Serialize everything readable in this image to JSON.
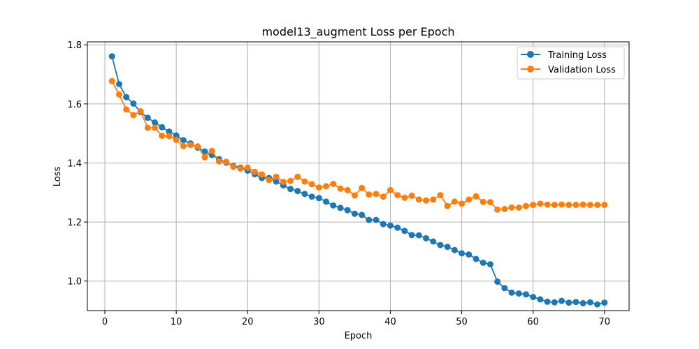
{
  "chart_data": {
    "type": "line",
    "title": "model13_augment Loss per Epoch",
    "xlabel": "Epoch",
    "ylabel": "Loss",
    "xlim": [
      -2.45,
      73.45
    ],
    "ylim": [
      0.9,
      1.81
    ],
    "xticks": [
      0,
      10,
      20,
      30,
      40,
      50,
      60,
      70
    ],
    "yticks": [
      1.0,
      1.2,
      1.4,
      1.6,
      1.8
    ],
    "xtick_labels": [
      "0",
      "10",
      "20",
      "30",
      "40",
      "50",
      "60",
      "70"
    ],
    "ytick_labels": [
      "1.0",
      "1.2",
      "1.4",
      "1.6",
      "1.8"
    ],
    "grid": true,
    "legend_position": "top-right",
    "x": [
      1,
      2,
      3,
      4,
      5,
      6,
      7,
      8,
      9,
      10,
      11,
      12,
      13,
      14,
      15,
      16,
      17,
      18,
      19,
      20,
      21,
      22,
      23,
      24,
      25,
      26,
      27,
      28,
      29,
      30,
      31,
      32,
      33,
      34,
      35,
      36,
      37,
      38,
      39,
      40,
      41,
      42,
      43,
      44,
      45,
      46,
      47,
      48,
      49,
      50,
      51,
      52,
      53,
      54,
      55,
      56,
      57,
      58,
      59,
      60,
      61,
      62,
      63,
      64,
      65,
      66,
      67,
      68,
      69,
      70
    ],
    "series": [
      {
        "name": "Training Loss",
        "color": "#1f77b4",
        "values": [
          1.761,
          1.667,
          1.623,
          1.601,
          1.572,
          1.553,
          1.537,
          1.521,
          1.506,
          1.493,
          1.477,
          1.466,
          1.452,
          1.439,
          1.427,
          1.413,
          1.401,
          1.39,
          1.384,
          1.374,
          1.362,
          1.349,
          1.349,
          1.337,
          1.324,
          1.312,
          1.305,
          1.295,
          1.286,
          1.281,
          1.269,
          1.256,
          1.248,
          1.24,
          1.228,
          1.224,
          1.207,
          1.207,
          1.193,
          1.188,
          1.181,
          1.17,
          1.156,
          1.155,
          1.145,
          1.134,
          1.122,
          1.116,
          1.105,
          1.094,
          1.09,
          1.075,
          1.062,
          1.057,
          0.998,
          0.976,
          0.961,
          0.958,
          0.955,
          0.946,
          0.938,
          0.93,
          0.928,
          0.933,
          0.927,
          0.929,
          0.925,
          0.928,
          0.921,
          0.927
        ]
      },
      {
        "name": "Validation Loss",
        "color": "#ff7f0e",
        "values": [
          1.677,
          1.632,
          1.581,
          1.562,
          1.575,
          1.519,
          1.519,
          1.492,
          1.491,
          1.478,
          1.457,
          1.461,
          1.456,
          1.419,
          1.441,
          1.405,
          1.404,
          1.387,
          1.381,
          1.384,
          1.37,
          1.361,
          1.342,
          1.353,
          1.336,
          1.339,
          1.353,
          1.337,
          1.328,
          1.317,
          1.321,
          1.329,
          1.313,
          1.308,
          1.29,
          1.315,
          1.293,
          1.295,
          1.286,
          1.308,
          1.291,
          1.282,
          1.289,
          1.276,
          1.273,
          1.276,
          1.291,
          1.254,
          1.269,
          1.262,
          1.276,
          1.287,
          1.268,
          1.267,
          1.242,
          1.244,
          1.249,
          1.249,
          1.254,
          1.258,
          1.262,
          1.259,
          1.258,
          1.259,
          1.258,
          1.258,
          1.259,
          1.258,
          1.258,
          1.258
        ]
      }
    ]
  }
}
